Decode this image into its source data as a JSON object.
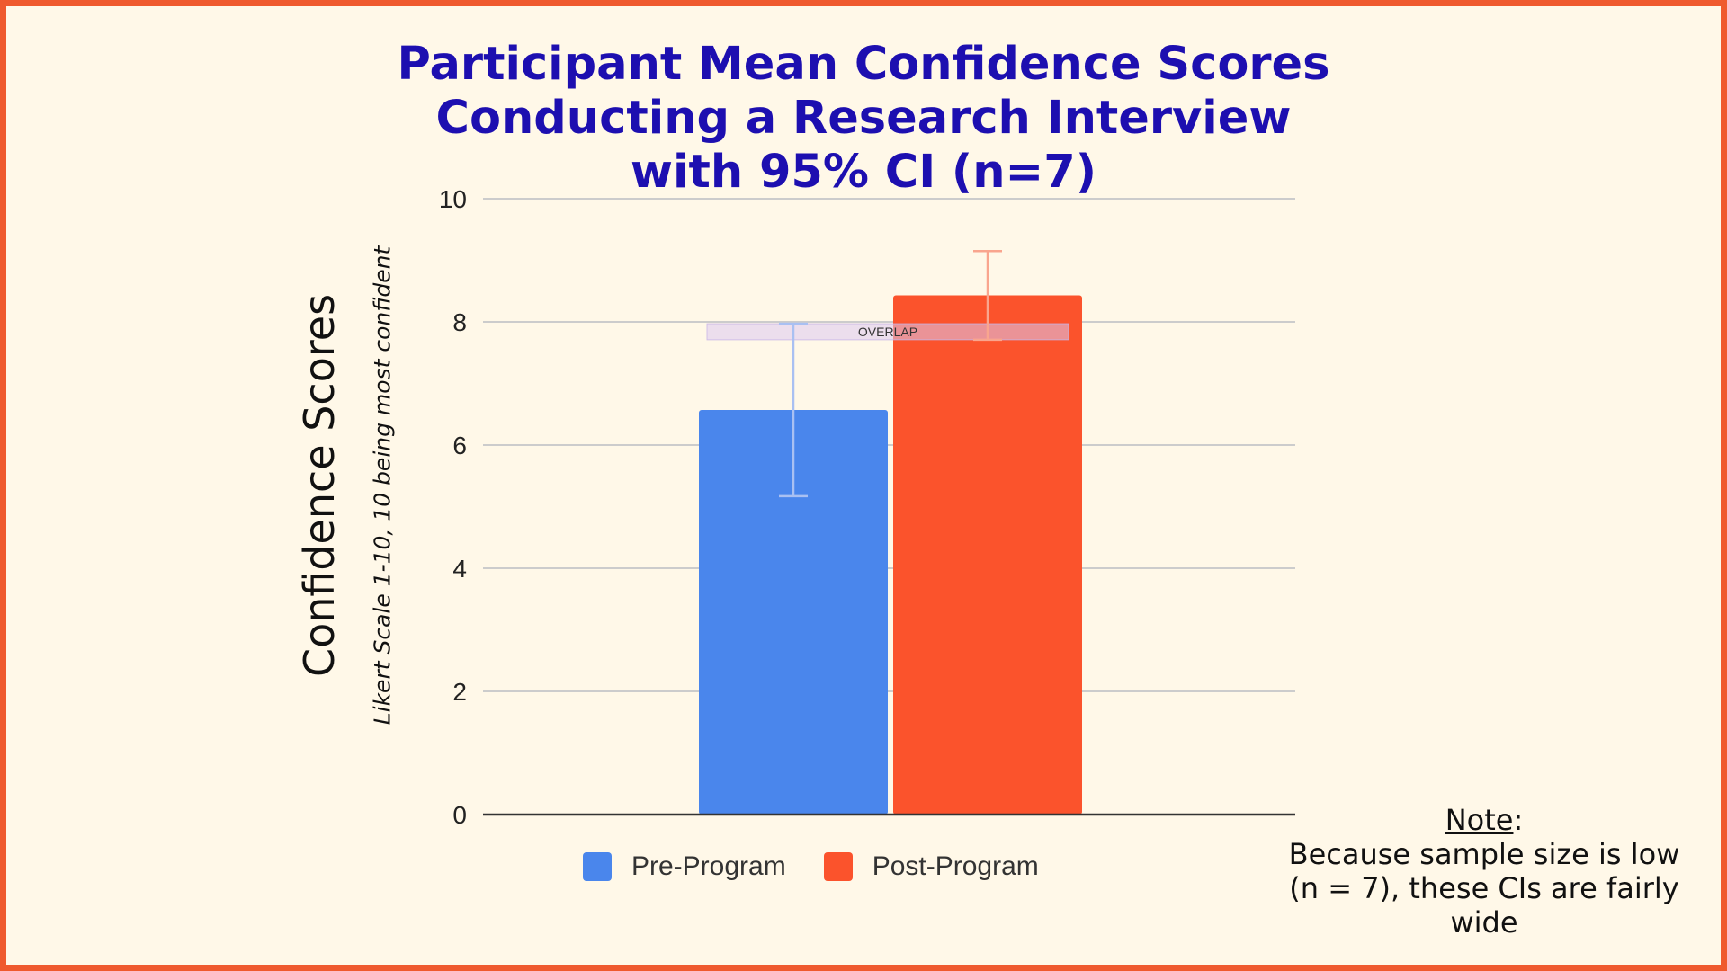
{
  "chart_data": {
    "type": "bar",
    "title_lines": [
      "Participant Mean Confidence Scores",
      "Conducting a Research Interview",
      "with 95% CI (n=7)"
    ],
    "ylabel": "Confidence Scores",
    "ylabel_sub": "Likert Scale 1-10, 10 being most confident",
    "ylim": [
      0,
      10
    ],
    "yticks": [
      "0",
      "2",
      "4",
      "6",
      "8",
      "10"
    ],
    "grid": true,
    "legend_position": "bottom",
    "series": [
      {
        "name": "Pre-Program",
        "value": 6.57,
        "ci_low": 5.17,
        "ci_high": 7.97,
        "color": "#4a86ec"
      },
      {
        "name": "Post-Program",
        "value": 8.43,
        "ci_low": 7.71,
        "ci_high": 9.15,
        "color": "#fb532c"
      }
    ],
    "overlap_band": {
      "label": "OVERLAP",
      "low": 7.71,
      "high": 7.97
    }
  },
  "note": {
    "title": "Note",
    "colon": ":",
    "body": "Because sample size is low (n = 7), these CIs are fairly wide"
  }
}
